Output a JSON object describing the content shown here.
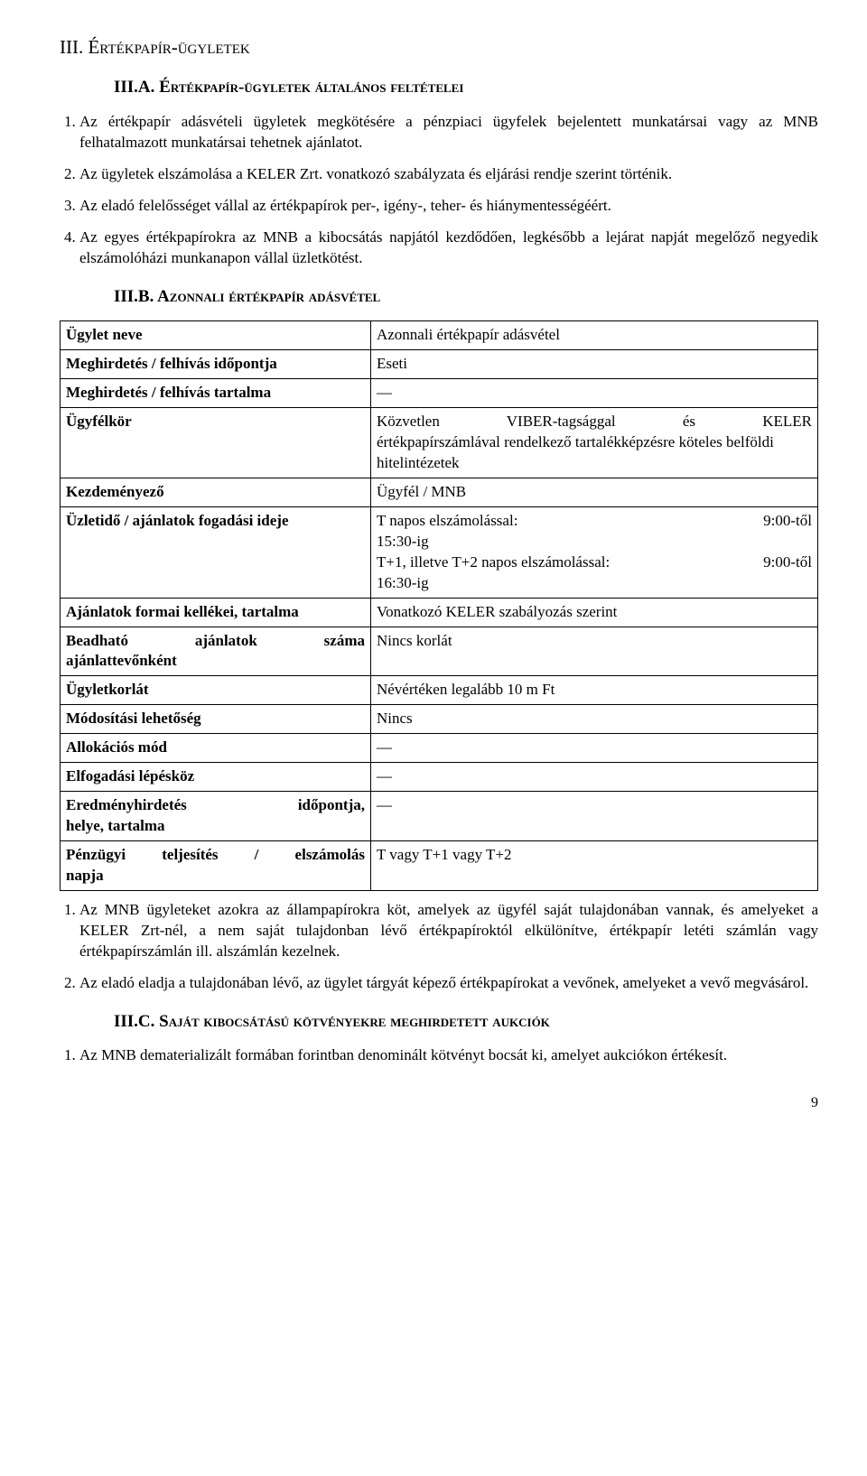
{
  "section_title": "III. Értékpapír-ügyletek",
  "sub_a_title": "III.A. Értékpapír-ügyletek általános feltételei",
  "list_a": [
    "Az értékpapír adásvételi ügyletek megkötésére a pénzpiaci ügyfelek bejelentett munkatársai vagy az MNB felhatalmazott munkatársai tehetnek ajánlatot.",
    "Az ügyletek elszámolása a KELER Zrt. vonatkozó szabályzata és eljárási rendje szerint történik.",
    "Az eladó felelősséget vállal az értékpapírok per-, igény-, teher- és hiánymentességéért.",
    "Az egyes értékpapírokra az MNB a kibocsátás napjától kezdődően, legkésőbb a lejárat napját megelőző negyedik elszámolóházi munkanapon vállal üzletkötést."
  ],
  "sub_b_title": "III.B. Azonnali értékpapír adásvétel",
  "table": {
    "rows": [
      {
        "label": "Ügylet neve",
        "value": "Azonnali értékpapír adásvétel"
      },
      {
        "label": "Meghirdetés / felhívás időpontja",
        "value": "Eseti"
      },
      {
        "label": "Meghirdetés / felhívás tartalma",
        "value": "—"
      },
      {
        "label": "Ügyfélkör",
        "value_spread": "Közvetlen VIBER-tagsággal és KELER",
        "value_rest": "értékpapírszámlával rendelkező tartalékképzésre köteles belföldi hitelintézetek"
      },
      {
        "label": "Kezdeményező",
        "value": "Ügyfél / MNB"
      },
      {
        "label": "Üzletidő / ajánlatok fogadási ideje",
        "time1_l": "T napos elszámolással:",
        "time1_r": "9:00-től",
        "time1_end": "15:30-ig",
        "time2_l": "T+1, illetve T+2 napos elszámolással:",
        "time2_r": "9:00-től",
        "time2_end": "16:30-ig"
      },
      {
        "label": "Ajánlatok formai kellékei, tartalma",
        "value": "Vonatkozó KELER szabályozás szerint"
      },
      {
        "label_spread": "Beadható ajánlatok száma",
        "label_rest": "ajánlattevőnként",
        "value": "Nincs korlát"
      },
      {
        "label": "Ügyletkorlát",
        "value": "Névértéken legalább 10 m Ft"
      },
      {
        "label": "Módosítási lehetőség",
        "value": "Nincs"
      },
      {
        "label": "Allokációs mód",
        "value": "—"
      },
      {
        "label": "Elfogadási lépésköz",
        "value": "—"
      },
      {
        "label_spread": "Eredményhirdetés időpontja,",
        "label_rest": "helye, tartalma",
        "value": "—"
      },
      {
        "label_spread": "Pénzügyi teljesítés / elszámolás",
        "label_rest": "napja",
        "value": "T vagy T+1 vagy T+2"
      }
    ]
  },
  "list_b": [
    "Az MNB ügyleteket azokra az állampapírokra köt, amelyek az ügyfél saját tulajdonában vannak, és amelyeket a KELER Zrt-nél, a nem saját tulajdonban lévő értékpapíroktól elkülönítve, értékpapír letéti számlán vagy értékpapírszámlán ill. alszámlán kezelnek.",
    "Az eladó eladja a tulajdonában lévő, az ügylet tárgyát képező értékpapírokat a vevőnek, amelyeket a vevő megvásárol."
  ],
  "sub_c_title": "III.C. Saját kibocsátású kötvényekre meghirdetett aukciók",
  "list_c": [
    "Az MNB dematerializált formában forintban denominált kötvényt bocsát ki, amelyet aukciókon értékesít."
  ],
  "page_number": "9"
}
